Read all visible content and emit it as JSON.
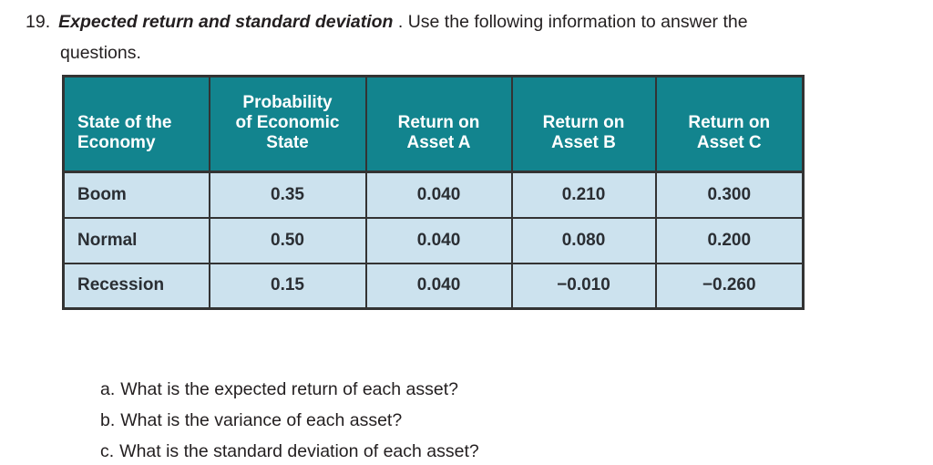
{
  "problem": {
    "number": "19.",
    "title": "Expected return and standard deviation",
    "intro_line1": " . Use the following information to answer the",
    "intro_line2": "questions."
  },
  "table": {
    "headers": [
      "State of the\nEconomy",
      "Probability\nof Economic\nState",
      "Return on\nAsset A",
      "Return on\nAsset B",
      "Return on\nAsset C"
    ],
    "rows": [
      {
        "cells": [
          "Boom",
          "0.35",
          "0.040",
          "0.210",
          "0.300"
        ]
      },
      {
        "cells": [
          "Normal",
          "0.50",
          "0.040",
          "0.080",
          "0.200"
        ]
      },
      {
        "cells": [
          "Recession",
          "0.15",
          "0.040",
          "−0.010",
          "−0.260"
        ]
      }
    ]
  },
  "questions": [
    {
      "label": "a.",
      "text": "What is the expected return of each asset?"
    },
    {
      "label": "b.",
      "text": "What is the variance of each asset?"
    },
    {
      "label": "c.",
      "text": "What is the standard deviation of each asset?"
    }
  ],
  "colors": {
    "header_bg": "#12848E",
    "row_bg": "#CCE2EE",
    "border": "#333333",
    "header_text": "#FFFFFF",
    "text": "#231F20"
  }
}
